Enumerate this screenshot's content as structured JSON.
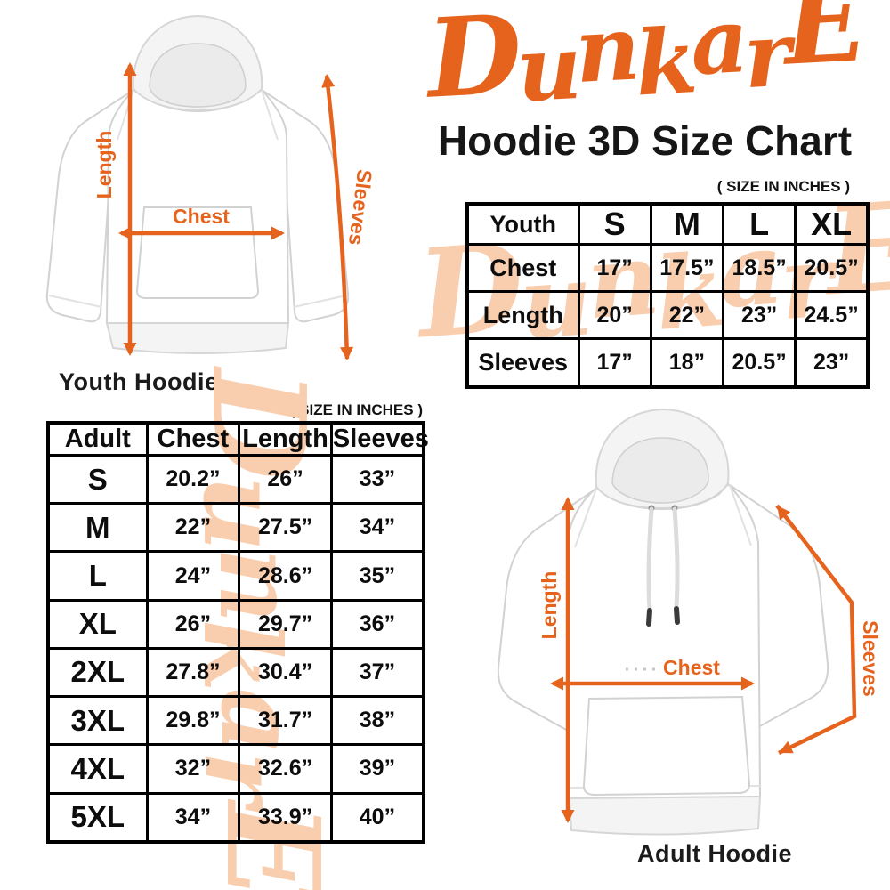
{
  "header": {
    "logo_text": "DunkarE",
    "title": "Hoodie 3D Size Chart"
  },
  "notes": {
    "youth_units": "( SIZE IN INCHES )",
    "adult_units": "( SIZE IN INCHES )"
  },
  "watermark_text": "DunkarE",
  "colors": {
    "accent_orange": "#E5631D",
    "watermark_peach": "#F8CEAF",
    "table_border": "#000000",
    "text": "#151515"
  },
  "youth_figure": {
    "caption": "Youth Hoodie",
    "length_label": "Length",
    "chest_label": "Chest",
    "sleeves_label": "Sleeves"
  },
  "adult_figure": {
    "caption": "Adult Hoodie",
    "length_label": "Length",
    "chest_label": "Chest",
    "sleeves_label": "Sleeves"
  },
  "chart_data": [
    {
      "type": "table",
      "title": "Youth",
      "unit_note": "( SIZE IN INCHES )",
      "columns": [
        "Youth",
        "S",
        "M",
        "L",
        "XL"
      ],
      "rows": [
        [
          "Chest",
          "17”",
          "17.5”",
          "18.5”",
          "20.5”"
        ],
        [
          "Length",
          "20”",
          "22”",
          "23”",
          "24.5”"
        ],
        [
          "Sleeves",
          "17”",
          "18”",
          "20.5”",
          "23”"
        ]
      ]
    },
    {
      "type": "table",
      "title": "Adult",
      "unit_note": "( SIZE IN INCHES )",
      "columns": [
        "Adult",
        "Chest",
        "Length",
        "Sleeves"
      ],
      "rows": [
        [
          "S",
          "20.2”",
          "26”",
          "33”"
        ],
        [
          "M",
          "22”",
          "27.5”",
          "34”"
        ],
        [
          "L",
          "24”",
          "28.6”",
          "35”"
        ],
        [
          "XL",
          "26”",
          "29.7”",
          "36”"
        ],
        [
          "2XL",
          "27.8”",
          "30.4”",
          "37”"
        ],
        [
          "3XL",
          "29.8”",
          "31.7”",
          "38”"
        ],
        [
          "4XL",
          "32”",
          "32.6”",
          "39”"
        ],
        [
          "5XL",
          "34”",
          "33.9”",
          "40”"
        ]
      ]
    }
  ]
}
